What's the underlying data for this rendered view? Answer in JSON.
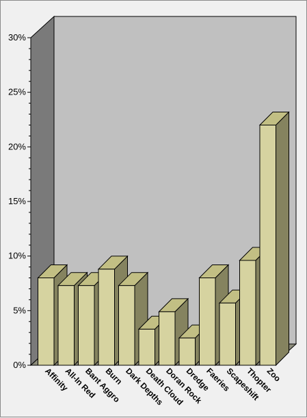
{
  "chart_data": {
    "type": "bar",
    "title": "",
    "xlabel": "",
    "ylabel": "",
    "categories": [
      "Affinity",
      "All-In Red",
      "Bant Aggro",
      "Burn",
      "Dark Depths",
      "Death Cloud",
      "Doran Rock",
      "Dredge",
      "Faeries",
      "Scapeshift",
      "Thopter",
      "Zoo"
    ],
    "values": [
      8,
      7.3,
      7.3,
      8.8,
      7.3,
      3.3,
      4.9,
      2.5,
      8,
      5.7,
      9.6,
      22
    ],
    "ylim": [
      0,
      30
    ],
    "yticks": [
      0,
      5,
      10,
      15,
      20,
      25,
      30
    ],
    "ytick_labels": [
      "0%",
      "5%",
      "10%",
      "15%",
      "20%",
      "25%",
      "30%"
    ],
    "grid": false,
    "legend": "none",
    "style": "3d",
    "colors": {
      "bar_front": "#d6d3a0",
      "bar_top": "#c2bf84",
      "bar_side": "#85835f",
      "back_wall": "#c0c0c0",
      "side_wall": "#7a7a7a",
      "floor": "#8c8c7c",
      "background": "#f0f0f0"
    }
  }
}
